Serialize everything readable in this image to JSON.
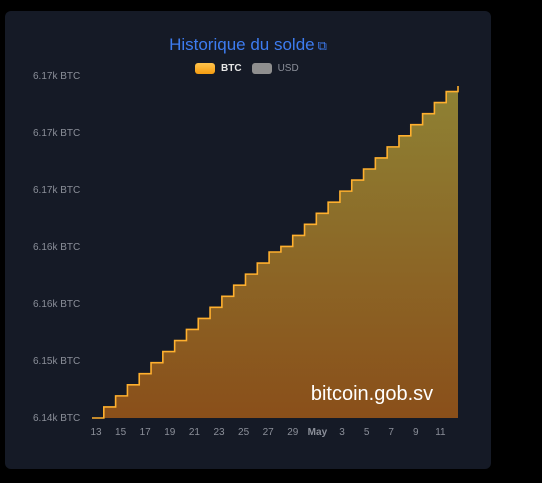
{
  "chart_data": {
    "type": "area",
    "title": "Historique du solde",
    "title_icon": "external-link-icon",
    "legend": [
      {
        "name": "BTC",
        "color": "#ffb02e",
        "active": true
      },
      {
        "name": "USD",
        "color": "#8f8f8f",
        "active": false
      }
    ],
    "legend_position": "top",
    "y_tick_labels": [
      "6.17k BTC",
      "6.17k BTC",
      "6.17k BTC",
      "6.16k BTC",
      "6.16k BTC",
      "6.15k BTC",
      "6.14k BTC"
    ],
    "x_tick_labels": [
      "13",
      "15",
      "17",
      "19",
      "21",
      "23",
      "25",
      "27",
      "29",
      "May",
      "3",
      "5",
      "7",
      "9",
      "11"
    ],
    "ylim": [
      6143,
      6173
    ],
    "grid": false,
    "watermark": "bitcoin.gob.sv",
    "x_start": "Apr 12",
    "series": [
      {
        "name": "BTC",
        "values": [
          6143.0,
          6144.0,
          6145.0,
          6146.0,
          6147.0,
          6148.0,
          6149.0,
          6150.0,
          6151.0,
          6152.0,
          6153.0,
          6154.0,
          6155.0,
          6156.0,
          6157.0,
          6158.0,
          6158.5,
          6159.5,
          6160.5,
          6161.5,
          6162.5,
          6163.5,
          6164.5,
          6165.5,
          6166.5,
          6167.5,
          6168.5,
          6169.5,
          6170.5,
          6171.5,
          6172.5,
          6173.0
        ]
      }
    ]
  }
}
